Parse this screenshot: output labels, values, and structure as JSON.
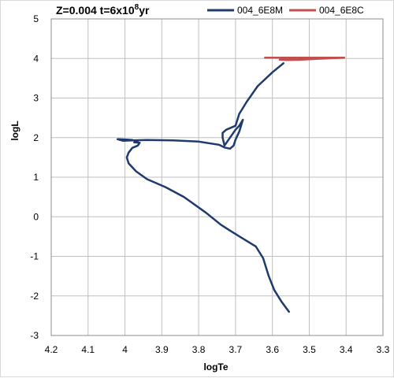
{
  "chart_data": {
    "type": "line",
    "title": {
      "prefix": "Z=0.004 t=6x10",
      "superscript": "8",
      "suffix": "yr"
    },
    "xlabel": "logTe",
    "ylabel": "logL",
    "xlim": [
      4.2,
      3.3
    ],
    "x_reversed": true,
    "ylim": [
      -3,
      5
    ],
    "xticks": [
      "4.2",
      "4.1",
      "4",
      "3.9",
      "3.8",
      "3.7",
      "3.6",
      "3.5",
      "3.4",
      "3.3"
    ],
    "yticks": [
      "-3",
      "-2",
      "-1",
      "0",
      "1",
      "2",
      "3",
      "4",
      "5"
    ],
    "grid": true,
    "legend_position": "top",
    "series": [
      {
        "name": "004_6E8M",
        "color": "#1f3a6e",
        "x": [
          3.555,
          3.575,
          3.595,
          3.61,
          3.625,
          3.645,
          3.68,
          3.715,
          3.74,
          3.78,
          3.84,
          3.89,
          3.94,
          3.97,
          3.99,
          3.995,
          3.99,
          3.98,
          3.965,
          3.96,
          3.975,
          3.965,
          3.98,
          3.995,
          4.02,
          4.005,
          3.98,
          3.94,
          3.87,
          3.8,
          3.745,
          3.73,
          3.715,
          3.705,
          3.7,
          3.69,
          3.68,
          3.69,
          3.7,
          3.73,
          3.735,
          3.735,
          3.725,
          3.7,
          3.69,
          3.67,
          3.64,
          3.6,
          3.57
        ],
        "y": [
          -2.4,
          -2.15,
          -1.85,
          -1.5,
          -1.05,
          -0.75,
          -0.55,
          -0.35,
          -0.2,
          0.1,
          0.5,
          0.75,
          0.95,
          1.15,
          1.35,
          1.5,
          1.62,
          1.74,
          1.8,
          1.87,
          1.88,
          1.9,
          1.94,
          1.95,
          1.96,
          1.92,
          1.93,
          1.94,
          1.93,
          1.9,
          1.82,
          1.75,
          1.72,
          1.8,
          1.95,
          2.15,
          2.45,
          2.3,
          2.2,
          1.8,
          2.0,
          2.12,
          2.2,
          2.3,
          2.6,
          2.9,
          3.3,
          3.65,
          3.88
        ]
      },
      {
        "name": "004_6E8C",
        "color": "#c0504d",
        "x": [
          3.62,
          3.55,
          3.5,
          3.47,
          3.44,
          3.42,
          3.405,
          3.48,
          3.52,
          3.56,
          3.58,
          3.46,
          3.41
        ],
        "y": [
          4.02,
          4.02,
          4.02,
          4.02,
          4.02,
          4.02,
          4.02,
          3.99,
          3.97,
          3.96,
          3.97,
          4.0,
          4.02
        ]
      }
    ]
  }
}
